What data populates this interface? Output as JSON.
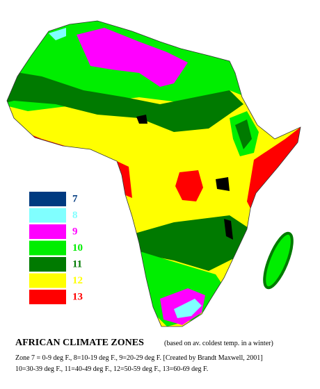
{
  "title": "AFRICAN CLIMATE ZONES",
  "subtitle": "(based on av. coldest temp. in a winter)",
  "legend": [
    {
      "label": "7",
      "color": "#003a80"
    },
    {
      "label": "8",
      "color": "#80ffff"
    },
    {
      "label": "9",
      "color": "#ff00ff"
    },
    {
      "label": "10",
      "color": "#00ee00"
    },
    {
      "label": "11",
      "color": "#007a00"
    },
    {
      "label": "12",
      "color": "#ffff00"
    },
    {
      "label": "13",
      "color": "#ff0000"
    }
  ],
  "notes": [
    "Zone 7 = 0-9 deg F., 8=10-19 deg F., 9=20-29 deg F. [Created by Brandt Maxwell, 2001]",
    "10=30-39 deg F., 11=40-49 deg F., 12=50-59 deg F., 13=60-69 deg F."
  ]
}
